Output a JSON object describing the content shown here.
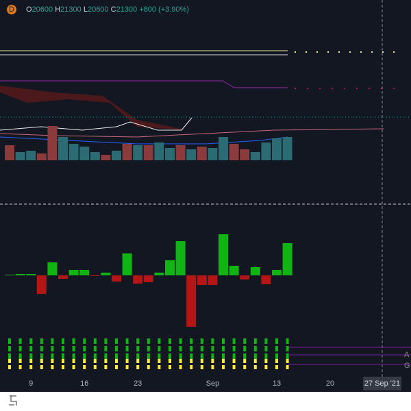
{
  "header": {
    "symbol_badge": "D",
    "open_label": "O",
    "open": "20600",
    "high_label": "H",
    "high": "21300",
    "low_label": "L",
    "low": "20600",
    "close_label": "C",
    "close": "21300",
    "change": "+800 (+3.90%)"
  },
  "chart_data": [
    {
      "type": "bar",
      "categories": [
        null,
        null,
        "9",
        null,
        null,
        null,
        null,
        "16",
        null,
        null,
        null,
        null,
        "23",
        null,
        null,
        null,
        null,
        null,
        null,
        "Sep",
        null,
        null,
        null,
        null,
        null,
        "13",
        null
      ],
      "values": [
        22,
        12,
        14,
        10,
        50,
        34,
        24,
        20,
        12,
        8,
        14,
        24,
        22,
        22,
        26,
        18,
        22,
        16,
        20,
        18,
        34,
        24,
        16,
        12,
        26,
        32,
        34
      ],
      "colors": [
        "#8b3b3b",
        "#2b6b73",
        "#2b6b73",
        "#8b3b3b",
        "#8b3b3b",
        "#2b6b73",
        "#2b6b73",
        "#2b6b73",
        "#2b6b73",
        "#8b3b3b",
        "#2b6b73",
        "#8b3b3b",
        "#2b6b73",
        "#8b3b3b",
        "#2b6b73",
        "#2b6b73",
        "#8b3b3b",
        "#2b6b73",
        "#8b3b3b",
        "#2b6b73",
        "#2b6b73",
        "#8b3b3b",
        "#8b3b3b",
        "#2b6b73",
        "#2b6b73",
        "#2b6b73",
        "#2b6b73"
      ]
    },
    {
      "type": "bar",
      "values": [
        1,
        2,
        2,
        -27,
        19,
        -5,
        8,
        8,
        -1,
        4,
        -9,
        32,
        -12,
        -10,
        4,
        22,
        50,
        -75,
        -14,
        -14,
        60,
        14,
        -6,
        12,
        -13,
        8,
        47
      ],
      "up_color": "#11b511",
      "down_color": "#b41616"
    }
  ],
  "axis": {
    "future_labels": [
      "20"
    ],
    "crosshair_label": "27 Sep '21"
  },
  "legend_stub": [
    "A",
    "G"
  ]
}
